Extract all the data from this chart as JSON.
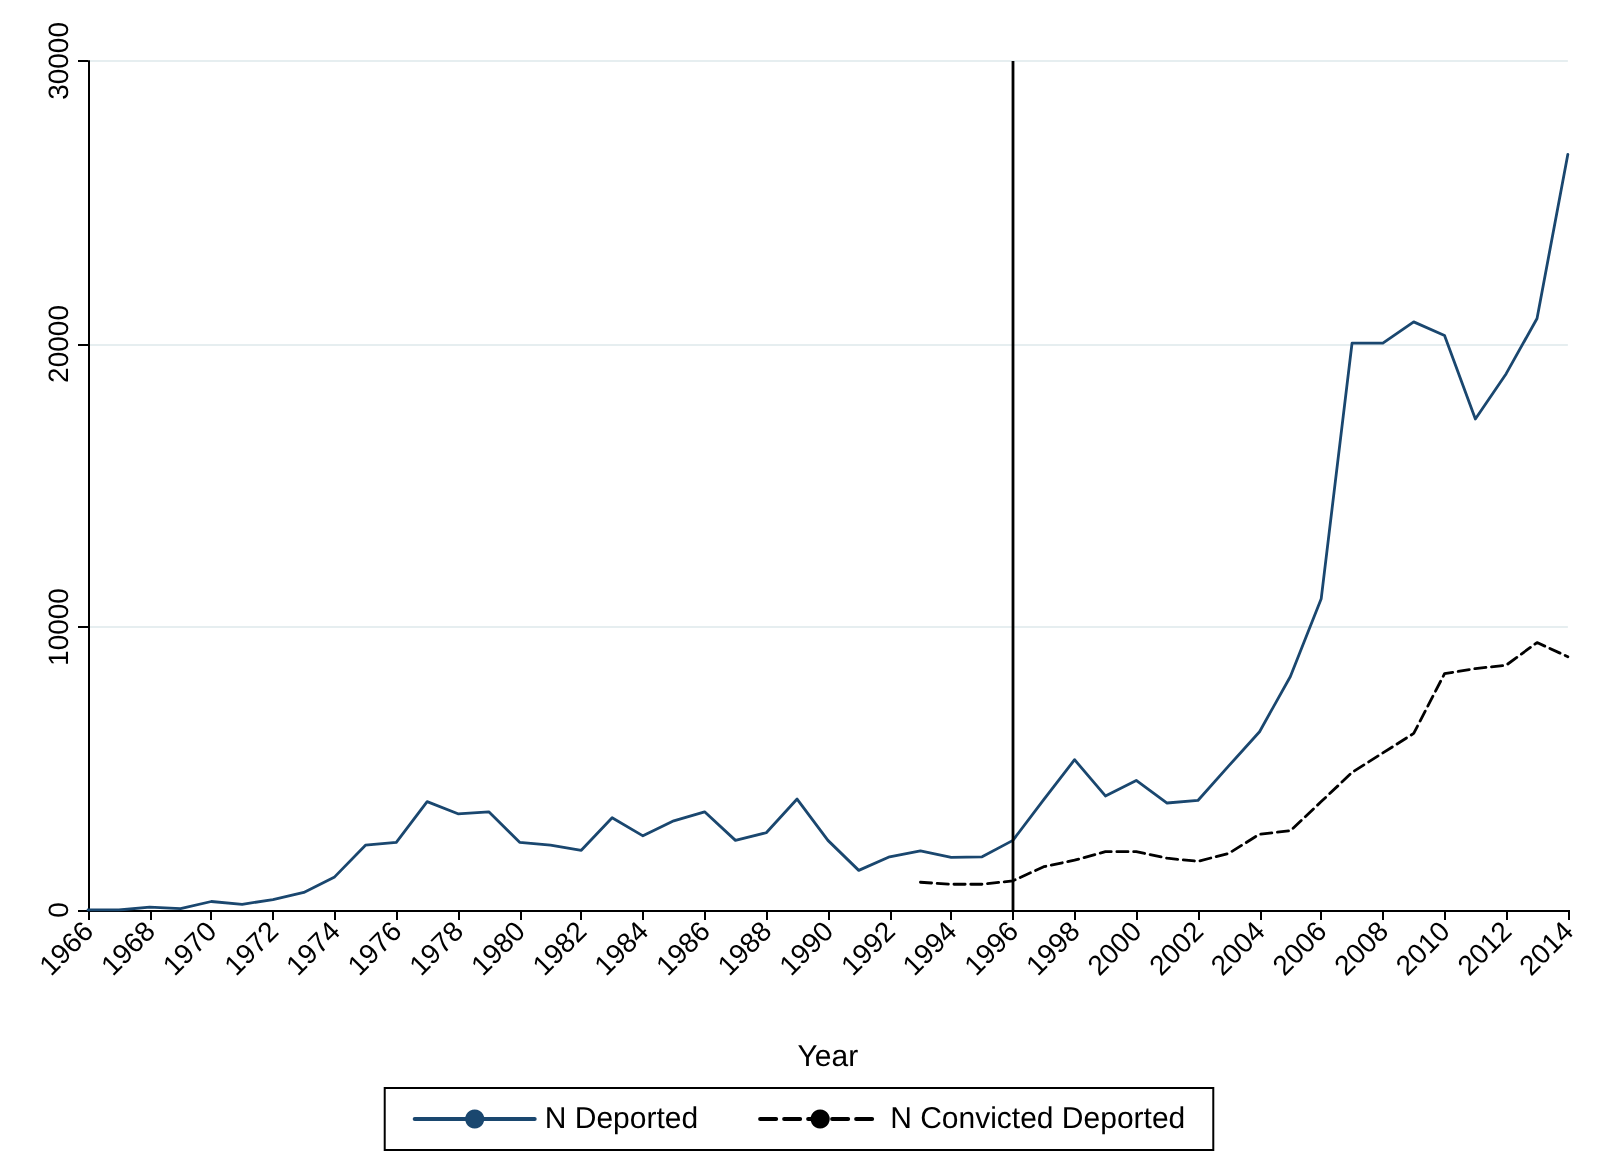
{
  "chart_data": {
    "type": "line",
    "xlabel": "Year",
    "x": [
      1966,
      1967,
      1968,
      1969,
      1970,
      1971,
      1972,
      1973,
      1974,
      1975,
      1976,
      1977,
      1978,
      1979,
      1980,
      1981,
      1982,
      1983,
      1984,
      1985,
      1986,
      1987,
      1988,
      1989,
      1990,
      1991,
      1992,
      1993,
      1994,
      1995,
      1996,
      1997,
      1998,
      1999,
      2000,
      2001,
      2002,
      2003,
      2004,
      2005,
      2006,
      2007,
      2008,
      2009,
      2010,
      2011,
      2012,
      2013,
      2014
    ],
    "series": [
      {
        "name": "N Deported",
        "color": "#1a476f",
        "line_style": "solid",
        "values": [
          0,
          0,
          100,
          50,
          300,
          200,
          370,
          620,
          1170,
          2290,
          2390,
          3830,
          3400,
          3470,
          2390,
          2290,
          2110,
          3260,
          2620,
          3150,
          3470,
          2460,
          2730,
          3920,
          2460,
          1400,
          1880,
          2090,
          1860,
          1880,
          2460,
          3900,
          5310,
          4030,
          4580,
          3780,
          3870,
          5090,
          6300,
          8250,
          11000,
          20030,
          20030,
          20780,
          20300,
          17350,
          18950,
          20900,
          26700
        ]
      },
      {
        "name": "N Convicted Deported",
        "color": "#000000",
        "line_style": "dashed",
        "values": [
          null,
          null,
          null,
          null,
          null,
          null,
          null,
          null,
          null,
          null,
          null,
          null,
          null,
          null,
          null,
          null,
          null,
          null,
          null,
          null,
          null,
          null,
          null,
          null,
          null,
          null,
          null,
          980,
          910,
          910,
          1030,
          1530,
          1760,
          2060,
          2060,
          1830,
          1720,
          2000,
          2680,
          2800,
          3830,
          4860,
          5550,
          6240,
          8350,
          8530,
          8650,
          9450,
          8950
        ]
      }
    ],
    "xlim": [
      1966,
      2014
    ],
    "xticks": [
      1966,
      1968,
      1970,
      1972,
      1974,
      1976,
      1978,
      1980,
      1982,
      1984,
      1986,
      1988,
      1990,
      1992,
      1994,
      1996,
      1998,
      2000,
      2002,
      2004,
      2006,
      2008,
      2010,
      2012,
      2014
    ],
    "ylim": [
      0,
      30000
    ],
    "yticks": [
      0,
      10000,
      20000,
      30000
    ],
    "ref_lines": [
      {
        "axis": "x",
        "value": 1996,
        "color": "#000000",
        "line_style": "solid"
      }
    ],
    "grid": "y",
    "legend": "bottom",
    "marker": "none"
  }
}
